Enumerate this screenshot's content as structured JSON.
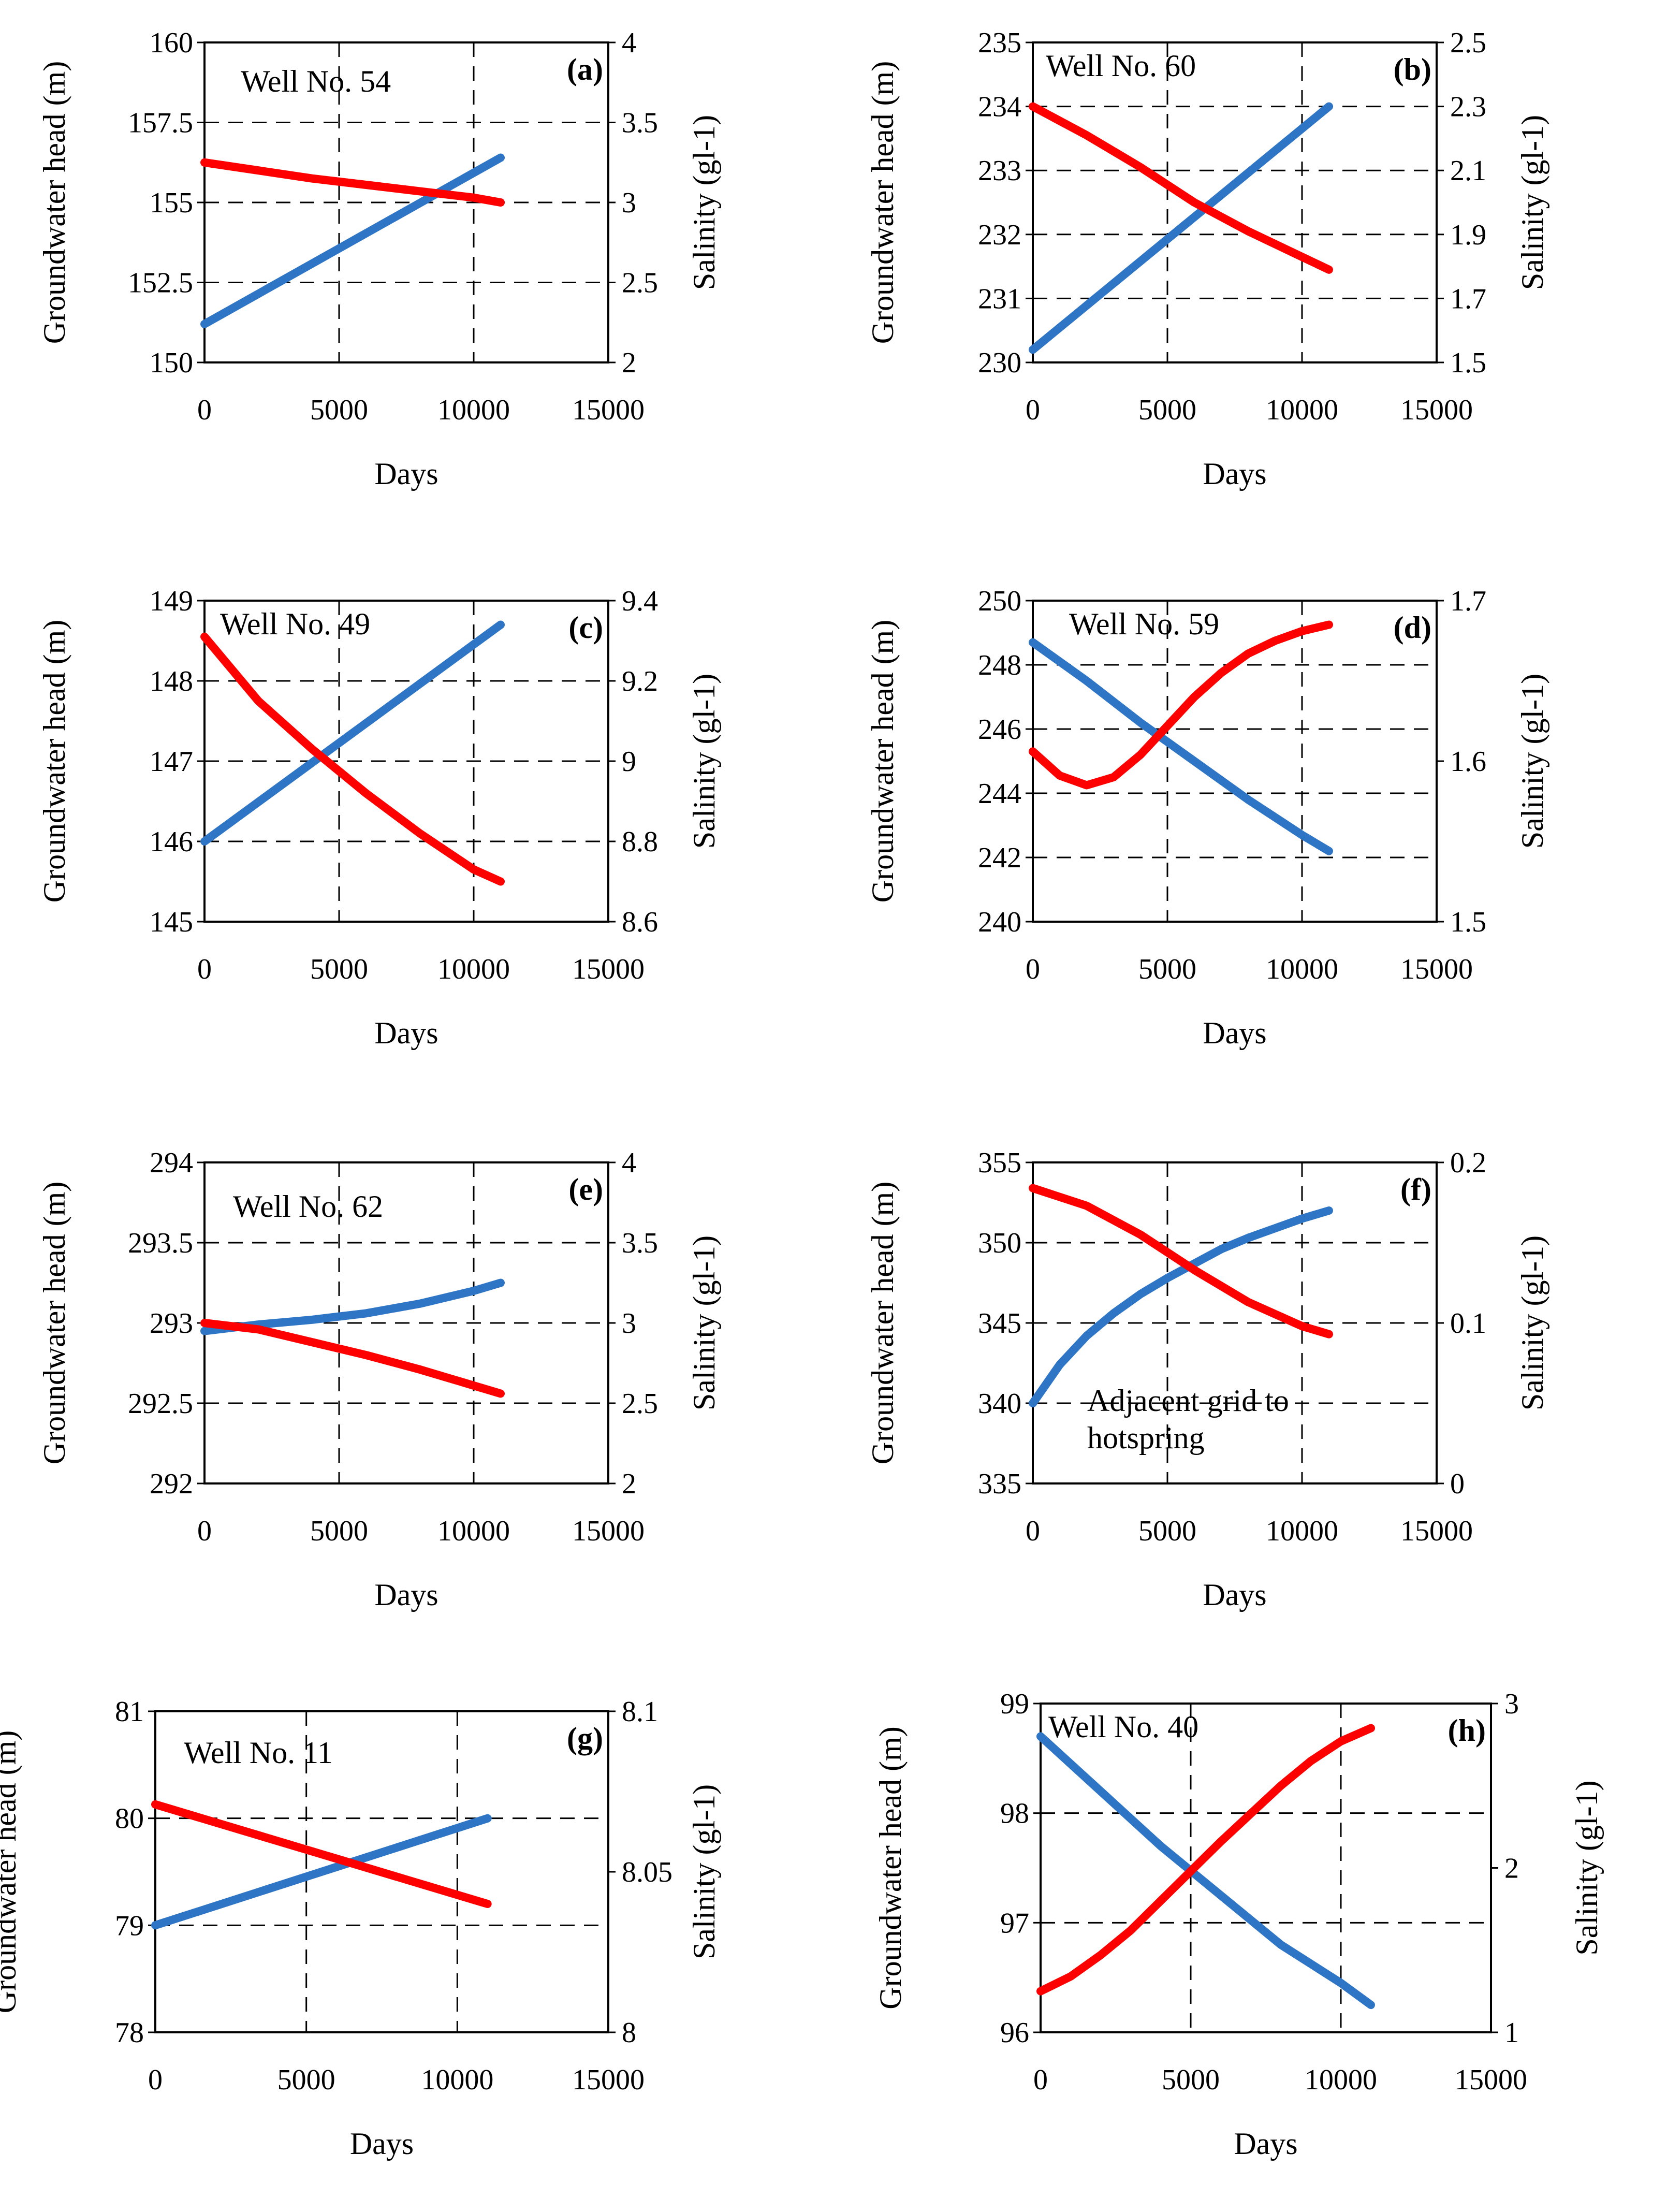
{
  "figure": {
    "description_colors": {
      "head_series": "#2e75c6",
      "salinity_series": "#ff0000"
    }
  },
  "chart_data": [
    {
      "type": "line",
      "panel": "(a)",
      "annotation": "Well No. 54",
      "xlabel": "Days",
      "ylabel": "Groundwater head (m)",
      "y2label": "Salinity (gl-1)",
      "xlim": [
        0,
        15000
      ],
      "xticks": [
        0,
        5000,
        10000,
        15000
      ],
      "xtick_labels": [
        "0",
        "5000",
        "10000",
        "15000"
      ],
      "ylim": [
        150,
        160
      ],
      "yticks": [
        150,
        152.5,
        155,
        157.5,
        160
      ],
      "ytick_labels": [
        "150",
        "152.5",
        "155",
        "157.5",
        "160"
      ],
      "y2lim": [
        2,
        4
      ],
      "y2ticks": [
        2,
        2.5,
        3,
        3.5,
        4
      ],
      "y2tick_labels": [
        "2",
        "2.5",
        "3",
        "3.5",
        "4"
      ],
      "series": [
        {
          "name": "Groundwater head",
          "axis": "left",
          "color": "#2e75c6",
          "x": [
            0,
            11000
          ],
          "values": [
            151.2,
            156.4
          ]
        },
        {
          "name": "Salinity",
          "axis": "right",
          "color": "#ff0000",
          "x": [
            0,
            2000,
            4000,
            6000,
            8000,
            10000,
            11000
          ],
          "values": [
            3.25,
            3.2,
            3.15,
            3.11,
            3.07,
            3.03,
            3.0
          ]
        }
      ]
    },
    {
      "type": "line",
      "panel": "(b)",
      "annotation": "Well No. 60",
      "xlabel": "Days",
      "ylabel": "Groundwater head (m)",
      "y2label": "Salinity (gl-1)",
      "xlim": [
        0,
        15000
      ],
      "xticks": [
        0,
        5000,
        10000,
        15000
      ],
      "xtick_labels": [
        "0",
        "5000",
        "10000",
        "15000"
      ],
      "ylim": [
        230,
        235
      ],
      "yticks": [
        230,
        231,
        232,
        233,
        234,
        235
      ],
      "ytick_labels": [
        "230",
        "231",
        "232",
        "233",
        "234",
        "235"
      ],
      "y2lim": [
        1.5,
        2.5
      ],
      "y2ticks": [
        1.5,
        1.7,
        1.9,
        2.1,
        2.3,
        2.5
      ],
      "y2tick_labels": [
        "1.5",
        "1.7",
        "1.9",
        "2.1",
        "2.3",
        "2.5"
      ],
      "series": [
        {
          "name": "Groundwater head",
          "axis": "left",
          "color": "#2e75c6",
          "x": [
            0,
            11000
          ],
          "values": [
            230.2,
            234.0
          ]
        },
        {
          "name": "Salinity",
          "axis": "right",
          "color": "#ff0000",
          "x": [
            0,
            2000,
            4000,
            6000,
            8000,
            10000,
            11000
          ],
          "values": [
            2.3,
            2.21,
            2.11,
            2.0,
            1.91,
            1.83,
            1.79
          ]
        }
      ]
    },
    {
      "type": "line",
      "panel": "(c)",
      "annotation": "Well No. 49",
      "xlabel": "Days",
      "ylabel": "Groundwater head (m)",
      "y2label": "Salinity (gl-1)",
      "xlim": [
        0,
        15000
      ],
      "xticks": [
        0,
        5000,
        10000,
        15000
      ],
      "xtick_labels": [
        "0",
        "5000",
        "10000",
        "15000"
      ],
      "ylim": [
        145,
        149
      ],
      "yticks": [
        145,
        146,
        147,
        148,
        149
      ],
      "ytick_labels": [
        "145",
        "146",
        "147",
        "148",
        "149"
      ],
      "y2lim": [
        8.6,
        9.4
      ],
      "y2ticks": [
        8.6,
        8.8,
        9,
        9.2,
        9.4
      ],
      "y2tick_labels": [
        "8.6",
        "8.8",
        "9",
        "9.2",
        "9.4"
      ],
      "series": [
        {
          "name": "Groundwater head",
          "axis": "left",
          "color": "#2e75c6",
          "x": [
            0,
            11000
          ],
          "values": [
            146.0,
            148.7
          ]
        },
        {
          "name": "Salinity",
          "axis": "right",
          "color": "#ff0000",
          "x": [
            0,
            2000,
            4000,
            6000,
            8000,
            10000,
            11000
          ],
          "values": [
            9.31,
            9.15,
            9.03,
            8.92,
            8.82,
            8.73,
            8.7
          ]
        }
      ]
    },
    {
      "type": "line",
      "panel": "(d)",
      "annotation": "Well No. 59",
      "xlabel": "Days",
      "ylabel": "Groundwater head (m)",
      "y2label": "Salinity (gl-1)",
      "xlim": [
        0,
        15000
      ],
      "xticks": [
        0,
        5000,
        10000,
        15000
      ],
      "xtick_labels": [
        "0",
        "5000",
        "10000",
        "15000"
      ],
      "ylim": [
        240,
        250
      ],
      "yticks": [
        240,
        242,
        244,
        246,
        248,
        250
      ],
      "ytick_labels": [
        "240",
        "242",
        "244",
        "246",
        "248",
        "250"
      ],
      "y2lim": [
        1.5,
        1.7
      ],
      "y2ticks": [
        1.5,
        1.6,
        1.7
      ],
      "y2tick_labels": [
        "1.5",
        "1.6",
        "1.7"
      ],
      "series": [
        {
          "name": "Groundwater head",
          "axis": "left",
          "color": "#2e75c6",
          "x": [
            0,
            2000,
            4000,
            6000,
            8000,
            10000,
            11000
          ],
          "values": [
            248.7,
            247.5,
            246.2,
            245.0,
            243.8,
            242.7,
            242.2
          ]
        },
        {
          "name": "Salinity",
          "axis": "right",
          "color": "#ff0000",
          "x": [
            0,
            1000,
            2000,
            3000,
            4000,
            5000,
            6000,
            7000,
            8000,
            9000,
            10000,
            11000
          ],
          "values": [
            1.606,
            1.591,
            1.585,
            1.59,
            1.604,
            1.622,
            1.64,
            1.655,
            1.667,
            1.675,
            1.681,
            1.685
          ]
        }
      ]
    },
    {
      "type": "line",
      "panel": "(e)",
      "annotation": "Well No. 62",
      "xlabel": "Days",
      "ylabel": "Groundwater head (m)",
      "y2label": "Salinity (gl-1)",
      "xlim": [
        0,
        15000
      ],
      "xticks": [
        0,
        5000,
        10000,
        15000
      ],
      "xtick_labels": [
        "0",
        "5000",
        "10000",
        "15000"
      ],
      "ylim": [
        292,
        294
      ],
      "yticks": [
        292,
        292.5,
        293,
        293.5,
        294
      ],
      "ytick_labels": [
        "292",
        "292.5",
        "293",
        "293.5",
        "294"
      ],
      "y2lim": [
        2,
        4
      ],
      "y2ticks": [
        2,
        2.5,
        3,
        3.5,
        4
      ],
      "y2tick_labels": [
        "2",
        "2.5",
        "3",
        "3.5",
        "4"
      ],
      "series": [
        {
          "name": "Groundwater head",
          "axis": "left",
          "color": "#2e75c6",
          "x": [
            0,
            2000,
            4000,
            6000,
            8000,
            10000,
            11000
          ],
          "values": [
            292.95,
            292.99,
            293.02,
            293.06,
            293.12,
            293.2,
            293.25
          ]
        },
        {
          "name": "Salinity",
          "axis": "right",
          "color": "#ff0000",
          "x": [
            0,
            2000,
            4000,
            6000,
            8000,
            10000,
            11000
          ],
          "values": [
            3.0,
            2.96,
            2.88,
            2.8,
            2.71,
            2.61,
            2.56
          ]
        }
      ]
    },
    {
      "type": "line",
      "panel": "(f)",
      "annotation": "Adjacent grid to hotspring",
      "annotation_lines": [
        "Adjacent grid to",
        "hotspring"
      ],
      "xlabel": "Days",
      "ylabel": "Groundwater head (m)",
      "y2label": "Salinity (gl-1)",
      "xlim": [
        0,
        15000
      ],
      "xticks": [
        0,
        5000,
        10000,
        15000
      ],
      "xtick_labels": [
        "0",
        "5000",
        "10000",
        "15000"
      ],
      "ylim": [
        335,
        355
      ],
      "yticks": [
        335,
        340,
        345,
        350,
        355
      ],
      "ytick_labels": [
        "335",
        "340",
        "345",
        "350",
        "355"
      ],
      "y2lim": [
        0,
        0.2
      ],
      "y2ticks": [
        0,
        0.1,
        0.2
      ],
      "y2tick_labels": [
        "0",
        "0.1",
        "0.2"
      ],
      "series": [
        {
          "name": "Groundwater head",
          "axis": "left",
          "color": "#2e75c6",
          "x": [
            0,
            1000,
            2000,
            3000,
            4000,
            5000,
            6000,
            7000,
            8000,
            9000,
            10000,
            11000
          ],
          "values": [
            340.0,
            342.4,
            344.2,
            345.6,
            346.8,
            347.8,
            348.7,
            349.6,
            350.3,
            350.9,
            351.5,
            352.0
          ]
        },
        {
          "name": "Salinity",
          "axis": "right",
          "color": "#ff0000",
          "x": [
            0,
            2000,
            4000,
            6000,
            8000,
            10000,
            11000
          ],
          "values": [
            0.184,
            0.173,
            0.155,
            0.133,
            0.113,
            0.098,
            0.093
          ]
        }
      ]
    },
    {
      "type": "line",
      "panel": "(g)",
      "annotation": "Well No. 11",
      "xlabel": "Days",
      "ylabel": "Groundwater head (m)",
      "y2label": "Salinity (gl-1)",
      "xlim": [
        0,
        15000
      ],
      "xticks": [
        0,
        5000,
        10000,
        15000
      ],
      "xtick_labels": [
        "0",
        "5000",
        "10000",
        "15000"
      ],
      "ylim": [
        78,
        81
      ],
      "yticks": [
        78,
        79,
        80,
        81
      ],
      "ytick_labels": [
        "78",
        "79",
        "80",
        "81"
      ],
      "y2lim": [
        8,
        8.1
      ],
      "y2ticks": [
        8,
        8.05,
        8.1
      ],
      "y2tick_labels": [
        "8",
        "8.05",
        "8.1"
      ],
      "series": [
        {
          "name": "Groundwater head",
          "axis": "left",
          "color": "#2e75c6",
          "x": [
            0,
            11000
          ],
          "values": [
            79.0,
            80.0
          ]
        },
        {
          "name": "Salinity",
          "axis": "right",
          "color": "#ff0000",
          "x": [
            0,
            11000
          ],
          "values": [
            8.071,
            8.04
          ]
        }
      ]
    },
    {
      "type": "line",
      "panel": "(h)",
      "annotation": "Well No. 40",
      "xlabel": "Days",
      "ylabel": "Groundwater head (m)",
      "y2label": "Salinity (gl-1)",
      "xlim": [
        0,
        15000
      ],
      "xticks": [
        0,
        5000,
        10000,
        15000
      ],
      "xtick_labels": [
        "0",
        "5000",
        "10000",
        "15000"
      ],
      "ylim": [
        96,
        99
      ],
      "yticks": [
        96,
        97,
        98,
        99
      ],
      "ytick_labels": [
        "96",
        "97",
        "98",
        "99"
      ],
      "y2lim": [
        1,
        3
      ],
      "y2ticks": [
        1,
        2,
        3
      ],
      "y2tick_labels": [
        "1",
        "2",
        "3"
      ],
      "series": [
        {
          "name": "Groundwater head",
          "axis": "left",
          "color": "#2e75c6",
          "x": [
            0,
            2000,
            4000,
            6000,
            8000,
            10000,
            11000
          ],
          "values": [
            98.7,
            98.2,
            97.7,
            97.25,
            96.8,
            96.45,
            96.25
          ]
        },
        {
          "name": "Salinity",
          "axis": "right",
          "color": "#ff0000",
          "x": [
            0,
            1000,
            2000,
            3000,
            4000,
            5000,
            6000,
            7000,
            8000,
            9000,
            10000,
            11000
          ],
          "values": [
            1.25,
            1.34,
            1.47,
            1.62,
            1.8,
            1.98,
            2.16,
            2.33,
            2.5,
            2.65,
            2.77,
            2.85
          ]
        }
      ]
    }
  ]
}
